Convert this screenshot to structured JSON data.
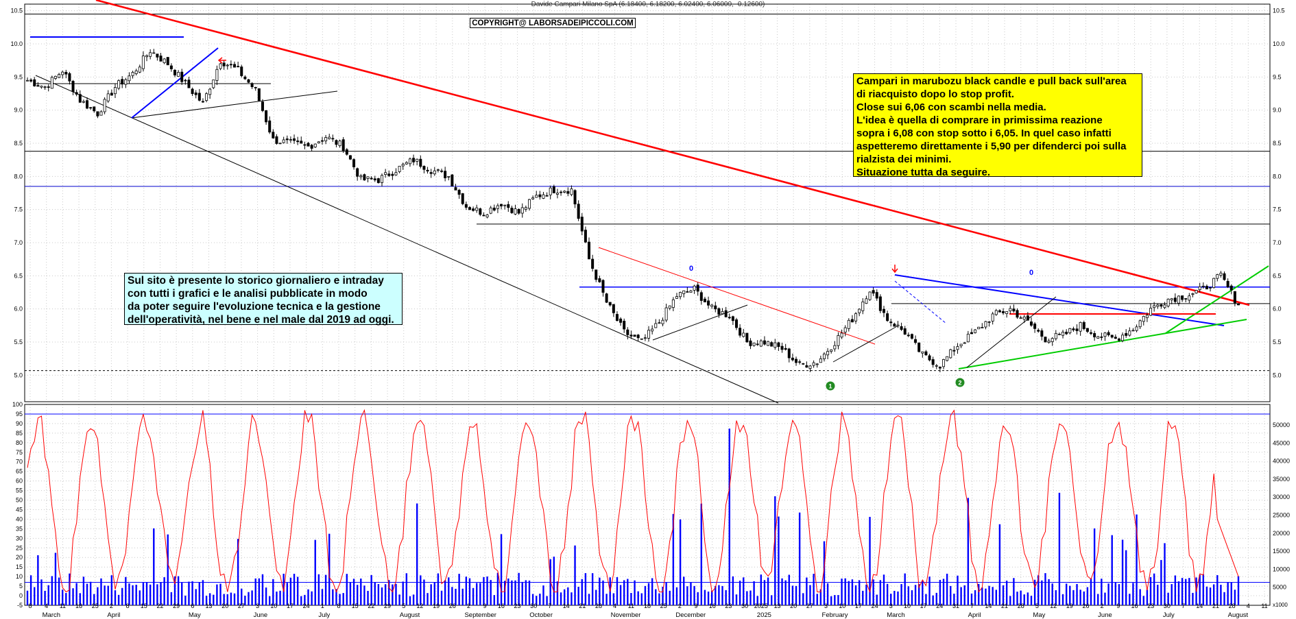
{
  "header": {
    "title": "Davide Campari Milano SpA (6.18400, 6.18200, 6.02400, 6.06000, -0.12600)",
    "copyright": "COPYRIGHT@ LABORSADEIPICCOLI.COM"
  },
  "notes": {
    "yellow": "Campari in marubozu black candle e pull back sull'area\ndi riacquisto dopo lo stop profit.\nClose sui 6,06 con scambi nella media.\nL'idea è quella di comprare in primissima reazione\nsopra i 6,08 con stop sotto i 6,05. In quel caso infatti\naspetteremo direttamente i 5,90 per difenderci poi sulla\nrialzista dei minimi.\nSituazione tutta da seguire.",
    "cyan": "Sul sito è presente lo storico giornaliero e intraday\ncon tutti i grafici e le analisi pubblicate in modo\nda poter seguire l'evoluzione tecnica e la gestione\ndell'operatività, nel bene e nel male dal 2019 ad oggi."
  },
  "colors": {
    "candle_body": "#000000",
    "red_trend": "#ff0000",
    "blue_line": "#0000ff",
    "green_line": "#00cc00",
    "oscillator": "#ff0000",
    "volume": "#0000ff",
    "note_yellow": "#ffff00",
    "note_cyan": "#ccffff"
  },
  "chart_data": [
    {
      "type": "candlestick",
      "title": "Davide Campari Milano SpA",
      "ylim": [
        4.6,
        10.6
      ],
      "y_ticks": [
        "10.5",
        "10.0",
        "9.5",
        "9.0",
        "8.5",
        "8.0",
        "7.5",
        "7.0",
        "6.5",
        "6.0",
        "5.5",
        "5.0"
      ],
      "closes_weekly": [
        9.45,
        9.35,
        9.6,
        9.15,
        8.95,
        9.35,
        9.55,
        9.9,
        9.7,
        9.4,
        9.1,
        9.75,
        9.6,
        9.3,
        8.55,
        8.5,
        8.45,
        8.6,
        8.45,
        7.95,
        7.95,
        8.1,
        8.25,
        8.1,
        8.0,
        7.55,
        7.45,
        7.6,
        7.45,
        7.7,
        7.8,
        7.8,
        6.75,
        6.1,
        5.65,
        5.5,
        5.8,
        6.2,
        6.3,
        6.0,
        5.9,
        5.5,
        5.5,
        5.4,
        5.15,
        5.2,
        5.5,
        5.85,
        6.3,
        5.85,
        5.65,
        5.3,
        5.15,
        5.45,
        5.65,
        5.9,
        6.0,
        5.8,
        5.55,
        5.6,
        5.75,
        5.6,
        5.55,
        5.7,
        6.0,
        6.15,
        6.2,
        6.3,
        6.5,
        6.06
      ],
      "levels": [
        10.45,
        8.38,
        7.85,
        7.28,
        6.33,
        6.08,
        5.07
      ],
      "circle_labels": [
        "1",
        "2"
      ],
      "wave_labels": [
        "0",
        "0"
      ]
    },
    {
      "type": "line",
      "name": "Oscillator",
      "ylim": [
        -5,
        100
      ],
      "y_ticks": [
        "100",
        "95",
        "90",
        "85",
        "80",
        "75",
        "70",
        "65",
        "60",
        "55",
        "50",
        "45",
        "40",
        "35",
        "30",
        "25",
        "20",
        "15",
        "10",
        "5",
        "0",
        "-5"
      ],
      "levels": [
        95,
        7
      ]
    },
    {
      "type": "bar",
      "name": "Volume",
      "ylim": [
        0,
        50000
      ],
      "y_ticks": [
        "50000",
        "45000",
        "40000",
        "35000",
        "30000",
        "25000",
        "20000",
        "15000",
        "10000",
        "5000"
      ],
      "unit_label": "x1000"
    }
  ],
  "x_axis": {
    "day_labels": [
      "8",
      "4",
      "11",
      "18",
      "25",
      "2",
      "8",
      "15",
      "22",
      "29",
      "6",
      "13",
      "20",
      "27",
      "3",
      "10",
      "17",
      "24",
      "1",
      "8",
      "15",
      "22",
      "29",
      "5",
      "12",
      "19",
      "26",
      "2",
      "9",
      "16",
      "23",
      "30",
      "7",
      "14",
      "21",
      "28",
      "4",
      "11",
      "18",
      "25",
      "2",
      "9",
      "16",
      "23",
      "30",
      "2025",
      "13",
      "20",
      "27",
      "3",
      "10",
      "17",
      "24",
      "3",
      "10",
      "17",
      "24",
      "31",
      "7",
      "14",
      "21",
      "28",
      "5",
      "12",
      "19",
      "26",
      "2",
      "9",
      "16",
      "23",
      "30",
      "7",
      "14",
      "21",
      "28",
      "4",
      "11"
    ],
    "months": [
      "March",
      "April",
      "May",
      "June",
      "July",
      "August",
      "September",
      "October",
      "November",
      "December",
      "2025",
      "February",
      "March",
      "April",
      "May",
      "June",
      "July",
      "August"
    ]
  }
}
